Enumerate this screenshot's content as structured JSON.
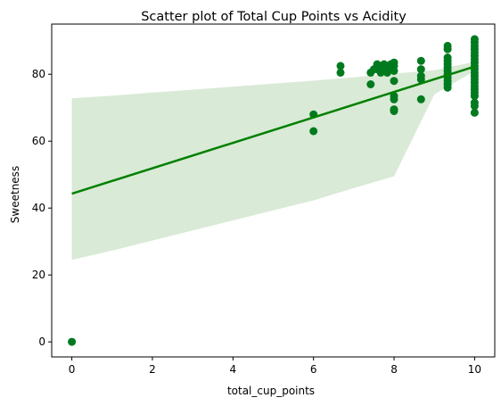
{
  "chart_data": {
    "type": "scatter",
    "title": "Scatter plot of Total Cup Points vs Acidity",
    "xlabel": "total_cup_points",
    "ylabel": "Sweetness",
    "xlim": [
      -0.5,
      10.5
    ],
    "ylim": [
      -4.5,
      95
    ],
    "xticks": [
      0,
      2,
      4,
      6,
      8,
      10
    ],
    "yticks": [
      0,
      20,
      40,
      60,
      80
    ],
    "grid": false,
    "point_color": "#007a1f",
    "line_color": "#008000",
    "band_color": "#d9ead6",
    "points": [
      [
        0,
        0
      ],
      [
        6,
        63
      ],
      [
        6,
        68
      ],
      [
        6.67,
        80.5
      ],
      [
        6.67,
        82.5
      ],
      [
        7.42,
        77
      ],
      [
        7.42,
        80.5
      ],
      [
        7.5,
        81.5
      ],
      [
        7.58,
        83
      ],
      [
        7.58,
        81.5
      ],
      [
        7.67,
        80.5
      ],
      [
        7.67,
        82
      ],
      [
        7.75,
        83
      ],
      [
        7.75,
        81
      ],
      [
        7.83,
        82.5
      ],
      [
        7.83,
        80.5
      ],
      [
        7.92,
        83
      ],
      [
        7.92,
        82
      ],
      [
        8,
        83.5
      ],
      [
        8,
        82.5
      ],
      [
        8,
        81
      ],
      [
        8,
        78
      ],
      [
        8,
        73.5
      ],
      [
        8,
        72.5
      ],
      [
        8,
        69.5
      ],
      [
        8,
        69
      ],
      [
        8.67,
        84
      ],
      [
        8.67,
        81.5
      ],
      [
        8.67,
        79.5
      ],
      [
        8.67,
        78.5
      ],
      [
        8.67,
        72.5
      ],
      [
        9.33,
        88.5
      ],
      [
        9.33,
        87.5
      ],
      [
        9.33,
        85
      ],
      [
        9.33,
        84
      ],
      [
        9.33,
        83
      ],
      [
        9.33,
        82
      ],
      [
        9.33,
        81
      ],
      [
        9.33,
        80
      ],
      [
        9.33,
        79
      ],
      [
        9.33,
        78
      ],
      [
        9.33,
        77
      ],
      [
        9.33,
        76
      ],
      [
        10,
        90.5
      ],
      [
        10,
        89.5
      ],
      [
        10,
        88.5
      ],
      [
        10,
        87.5
      ],
      [
        10,
        86.5
      ],
      [
        10,
        85.5
      ],
      [
        10,
        84.5
      ],
      [
        10,
        83.5
      ],
      [
        10,
        82.5
      ],
      [
        10,
        81.5
      ],
      [
        10,
        80.5
      ],
      [
        10,
        79.5
      ],
      [
        10,
        78.5
      ],
      [
        10,
        77.5
      ],
      [
        10,
        76.5
      ],
      [
        10,
        75.5
      ],
      [
        10,
        74.5
      ],
      [
        10,
        73.5
      ],
      [
        10,
        71.5
      ],
      [
        10,
        70.5
      ],
      [
        10,
        68.5
      ]
    ],
    "regression": {
      "x": [
        0,
        10
      ],
      "y": [
        44.3,
        82.3
      ]
    },
    "confidence_band": {
      "x": [
        0,
        1,
        2,
        3,
        4,
        5,
        6,
        7,
        8,
        9,
        10
      ],
      "upper": [
        72.8,
        73.6,
        74.5,
        75.4,
        76.3,
        77.2,
        78.1,
        79.1,
        80.2,
        81.2,
        83.7
      ],
      "lower": [
        24.5,
        27.3,
        30.3,
        33.3,
        36.3,
        39.3,
        42.3,
        46.0,
        49.5,
        74.0,
        81.0
      ]
    }
  }
}
